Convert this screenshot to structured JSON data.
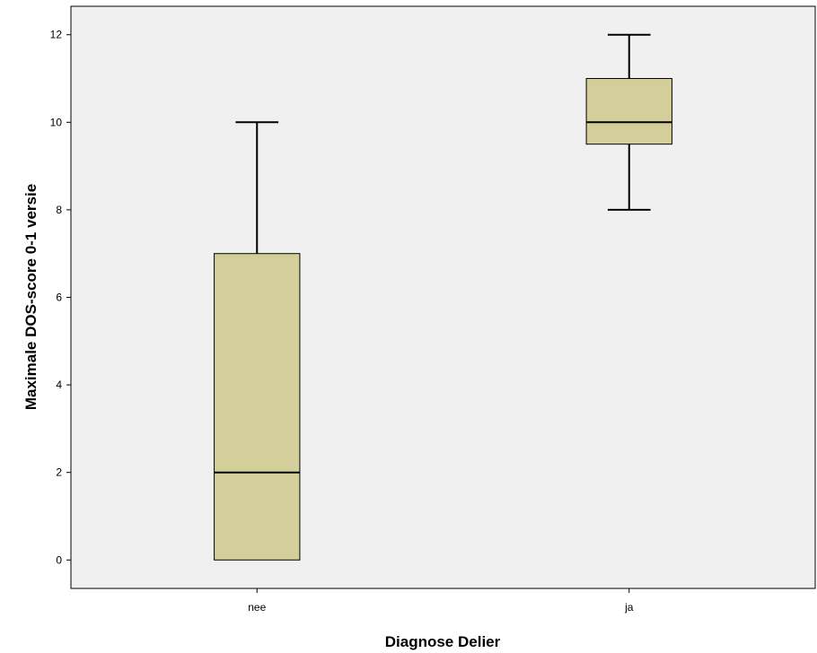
{
  "chart_data": {
    "type": "boxplot",
    "xlabel": "Diagnose Delier",
    "ylabel": "Maximale DOS-score 0-1 versie",
    "categories": [
      "nee",
      "ja"
    ],
    "boxes": [
      {
        "category": "nee",
        "min": 0,
        "q1": 0,
        "median": 2,
        "q3": 7,
        "max": 10
      },
      {
        "category": "ja",
        "min": 8,
        "q1": 9.5,
        "median": 10,
        "q3": 11,
        "max": 12
      }
    ],
    "y_ticks": [
      0,
      2,
      4,
      6,
      8,
      10,
      12
    ],
    "ylim": [
      -0.65,
      12.65
    ],
    "grid": false,
    "colors": {
      "plot_background": "#f0f0f0",
      "box_fill": "#d3ce9a",
      "line": "#000000"
    }
  }
}
